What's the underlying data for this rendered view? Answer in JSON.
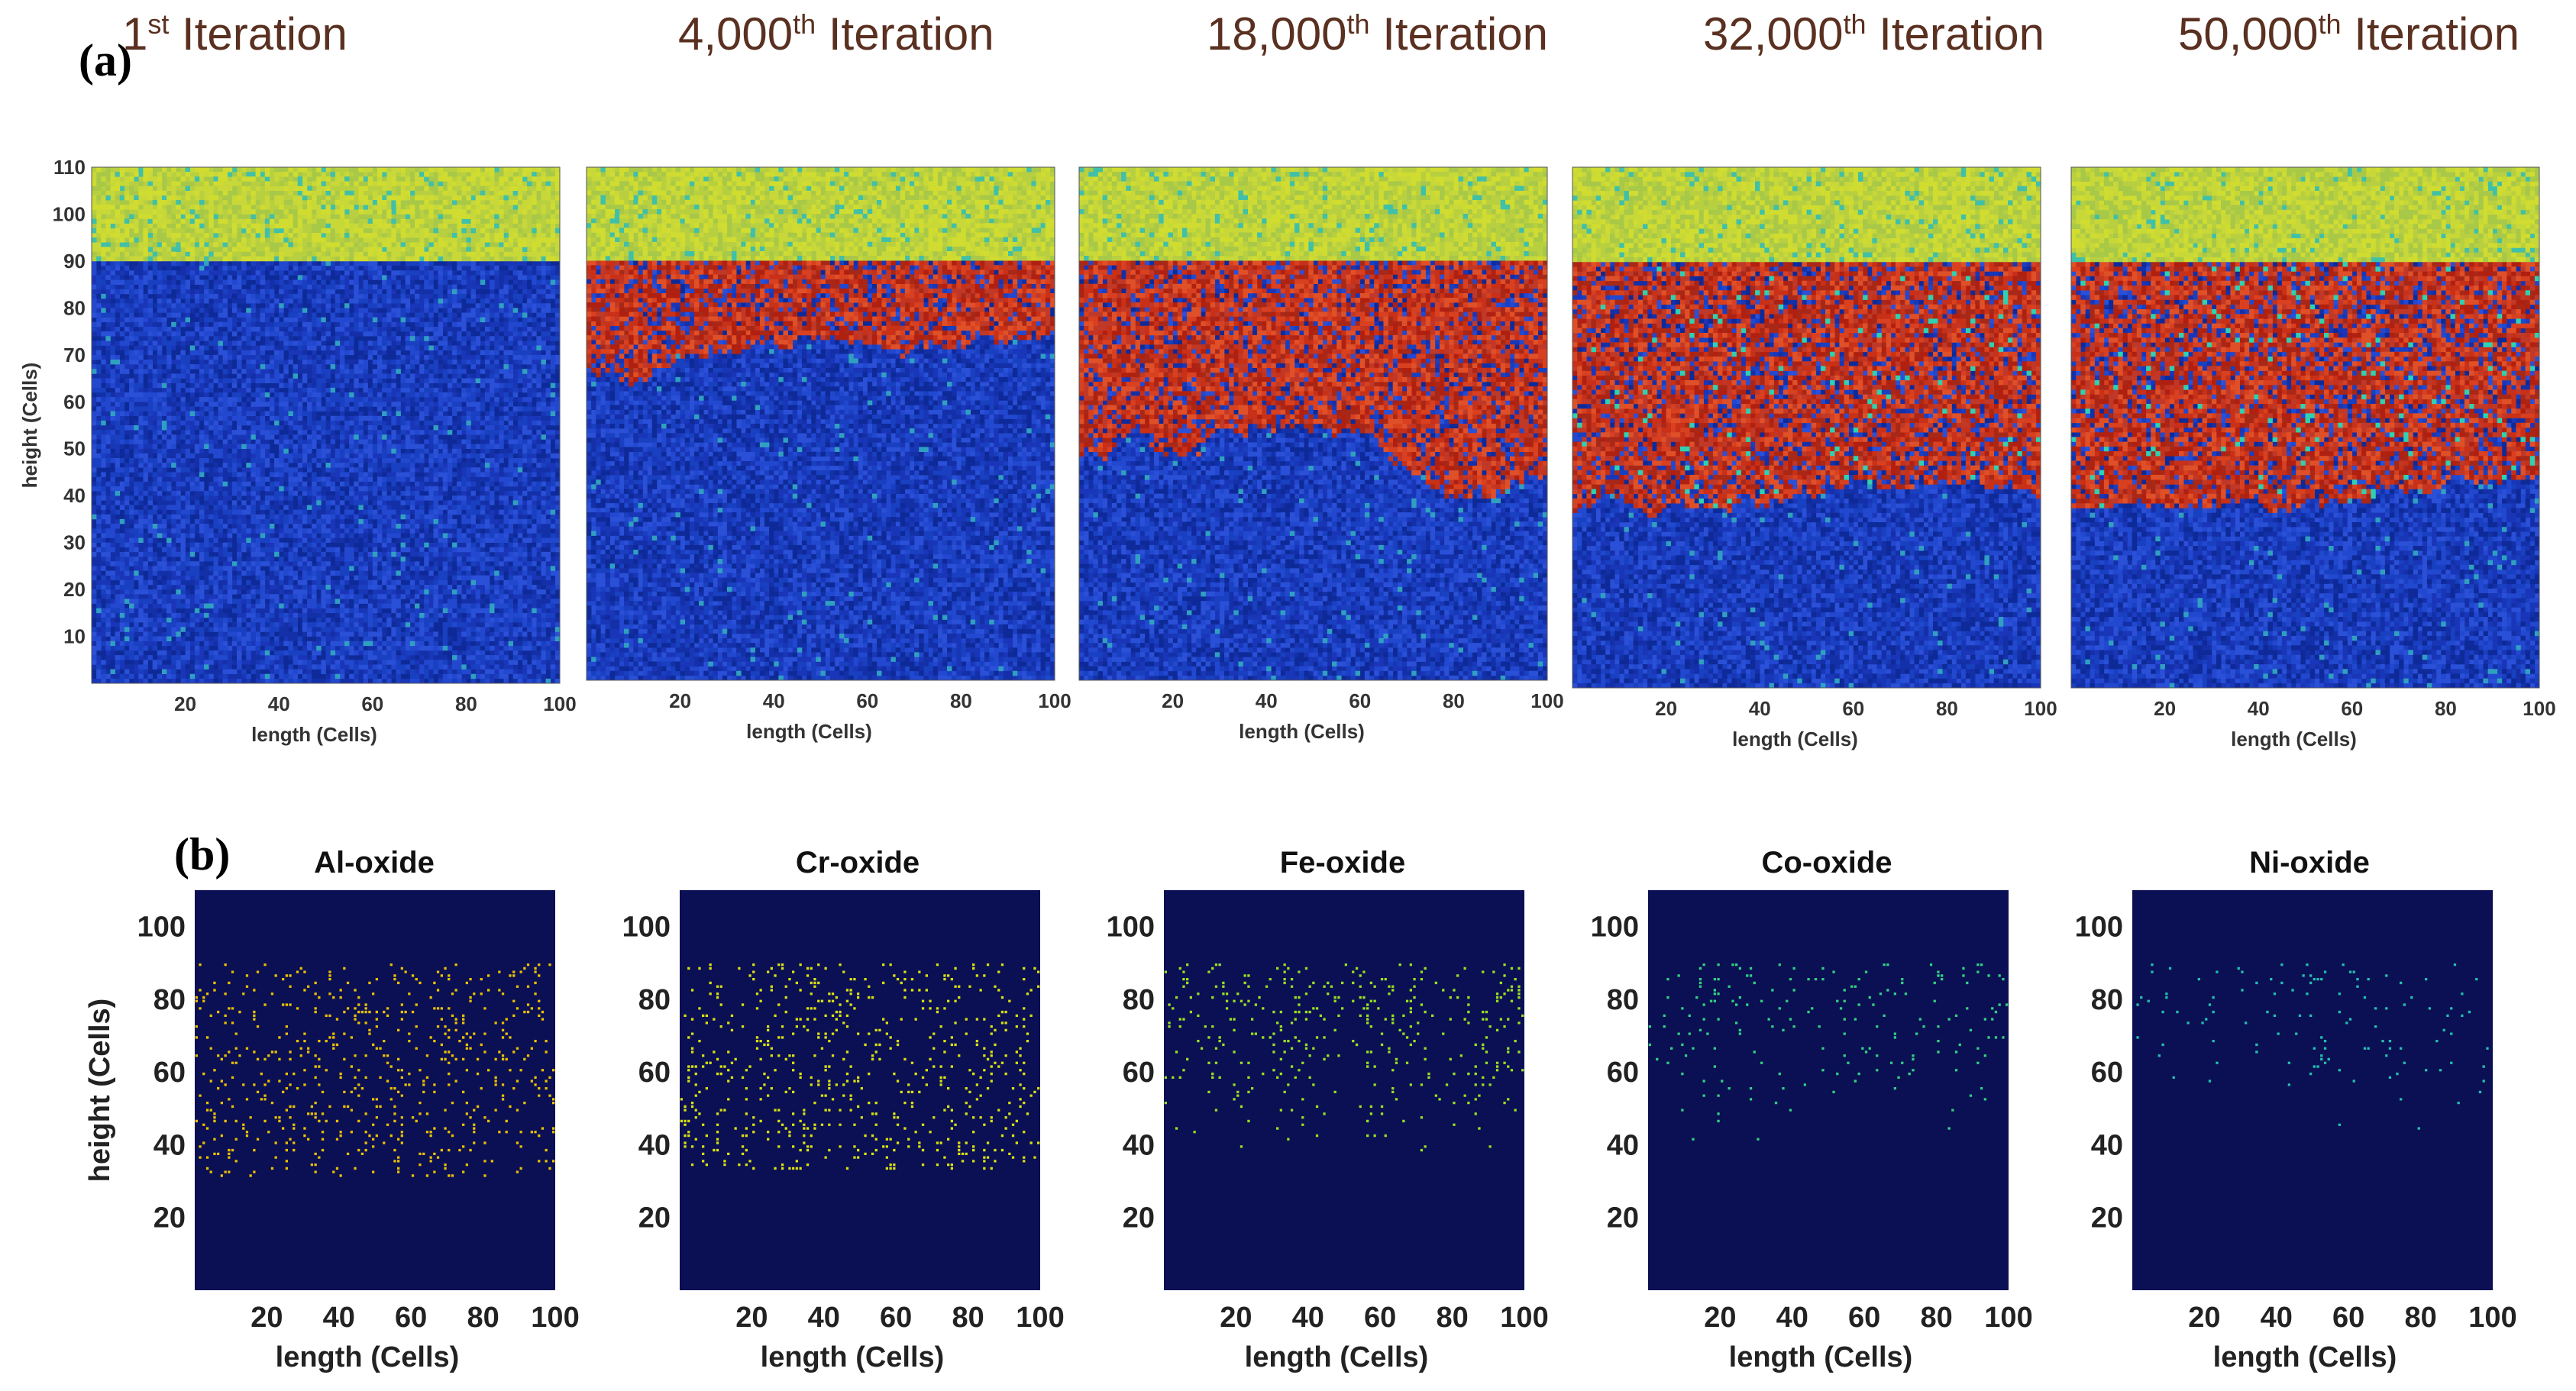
{
  "panel_labels": {
    "a": "(a)",
    "b": "(b)"
  },
  "chart_data": [
    {
      "panel": "a",
      "type": "heatmap",
      "description_of_colors": {
        "top_layer": "#c8d838",
        "oxide": "#c83018",
        "metal": "#1c40c8"
      },
      "xlabel": "length (Cells)",
      "ylabel": "height (Cells)",
      "xlim": [
        0,
        100
      ],
      "ylim": [
        0,
        110
      ],
      "xticks": [
        "20",
        "40",
        "60",
        "80",
        "100"
      ],
      "yticks": [
        "10",
        "20",
        "30",
        "40",
        "50",
        "60",
        "70",
        "80",
        "90",
        "100",
        "110"
      ],
      "surface_height": 90,
      "subplots": [
        {
          "title_num": "1",
          "title_sup": "st",
          "title_rest": " Iteration",
          "front_mean": 90,
          "front_var": 0
        },
        {
          "title_num": "4,000",
          "title_sup": "th",
          "title_rest": " Iteration",
          "front_mean": 66,
          "front_var": 3
        },
        {
          "title_num": "18,000",
          "title_sup": "th",
          "title_rest": " Iteration",
          "front_mean": 46,
          "front_var": 4
        },
        {
          "title_num": "32,000",
          "title_sup": "th",
          "title_rest": " Iteration",
          "front_mean": 36,
          "front_var": 3
        },
        {
          "title_num": "50,000",
          "title_sup": "th",
          "title_rest": " Iteration",
          "front_mean": 37,
          "front_var": 2
        }
      ]
    },
    {
      "panel": "b",
      "type": "scatter",
      "background": "#0b0f54",
      "xlabel": "length (Cells)",
      "ylabel": "height (Cells)",
      "xlim": [
        0,
        100
      ],
      "ylim": [
        0,
        110
      ],
      "xticks": [
        "20",
        "40",
        "60",
        "80",
        "100"
      ],
      "yticks": [
        "20",
        "40",
        "60",
        "80",
        "100"
      ],
      "series": [
        {
          "name": "Al-oxide",
          "color": "#e8c000",
          "ymin": 31,
          "ymax": 90,
          "count": 620
        },
        {
          "name": "Cr-oxide",
          "color": "#d8e010",
          "ymin": 33,
          "ymax": 90,
          "count": 640
        },
        {
          "name": "Fe-oxide",
          "color": "#98e020",
          "ymin": 38,
          "ymax": 90,
          "count": 380
        },
        {
          "name": "Co-oxide",
          "color": "#30d080",
          "ymin": 40,
          "ymax": 90,
          "count": 190
        },
        {
          "name": "Ni-oxide",
          "color": "#20c0b0",
          "ymin": 42,
          "ymax": 90,
          "count": 120
        }
      ]
    }
  ]
}
